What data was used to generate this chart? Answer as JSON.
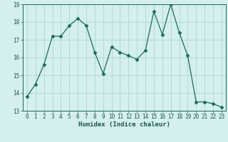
{
  "x": [
    0,
    1,
    2,
    3,
    4,
    5,
    6,
    7,
    8,
    9,
    10,
    11,
    12,
    13,
    14,
    15,
    16,
    17,
    18,
    19,
    20,
    21,
    22,
    23
  ],
  "y": [
    13.8,
    14.5,
    15.6,
    17.2,
    17.2,
    17.8,
    18.2,
    17.8,
    16.3,
    15.1,
    16.6,
    16.3,
    16.1,
    15.9,
    16.4,
    18.6,
    17.3,
    19.0,
    17.4,
    16.1,
    13.5,
    13.5,
    13.4,
    13.2
  ],
  "xlabel": "Humidex (Indice chaleur)",
  "line_color": "#1a6b5a",
  "marker": "D",
  "marker_size": 2.5,
  "bg_color": "#d5eeee",
  "grid_color": "#a8d8d8",
  "ylim": [
    13,
    19
  ],
  "xlim": [
    -0.5,
    23.5
  ],
  "yticks": [
    13,
    14,
    15,
    16,
    17,
    18,
    19
  ],
  "xticks": [
    0,
    1,
    2,
    3,
    4,
    5,
    6,
    7,
    8,
    9,
    10,
    11,
    12,
    13,
    14,
    15,
    16,
    17,
    18,
    19,
    20,
    21,
    22,
    23
  ],
  "tick_fontsize": 5.5,
  "xlabel_fontsize": 6.5,
  "tick_color": "#1a5a4a",
  "label_color": "#1a5a4a"
}
